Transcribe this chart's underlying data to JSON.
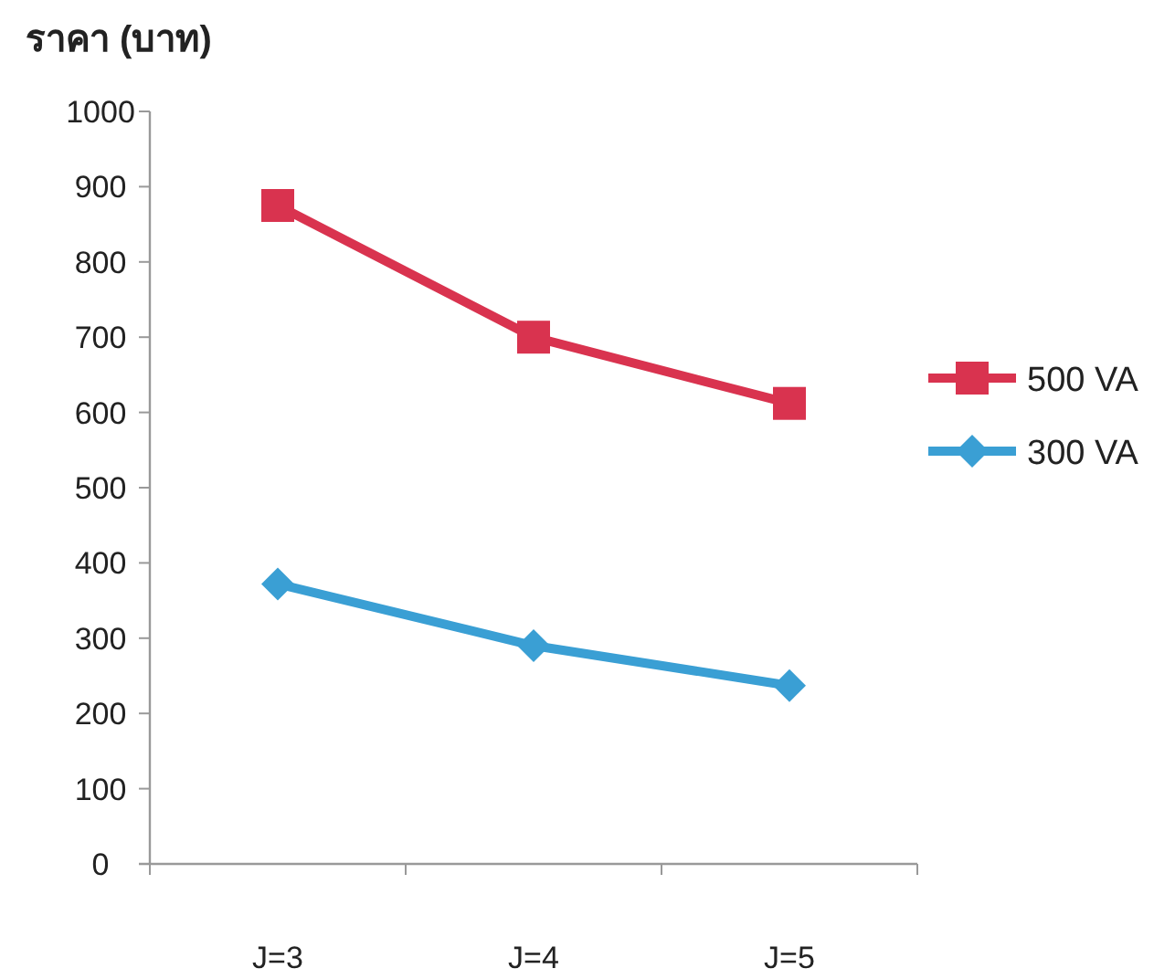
{
  "chart_data": {
    "type": "line",
    "ylabel": "ราคา (บาท)",
    "categories": [
      "J=3",
      "J=4",
      "J=5"
    ],
    "series": [
      {
        "name": "500 VA",
        "color": "#d9334f",
        "marker": "square",
        "values": [
          875,
          700,
          612
        ]
      },
      {
        "name": "300 VA",
        "color": "#3a9fd4",
        "marker": "diamond",
        "values": [
          372,
          290,
          237
        ]
      }
    ],
    "ylim": [
      0,
      1000
    ],
    "yticks": [
      0,
      100,
      200,
      300,
      400,
      500,
      600,
      700,
      800,
      900,
      1000
    ],
    "grid": false,
    "legend": "right"
  }
}
